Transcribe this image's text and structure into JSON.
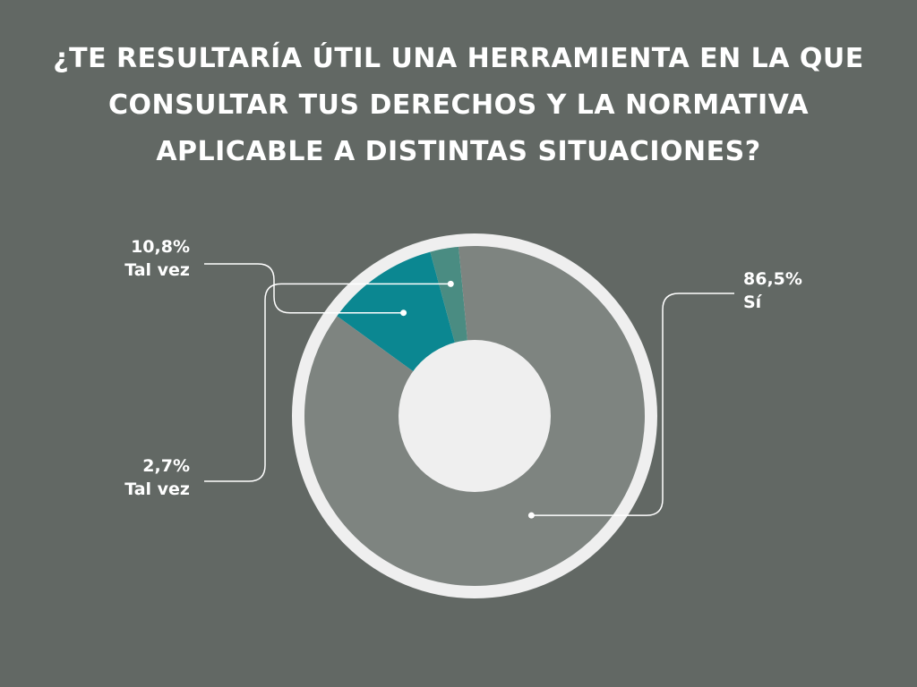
{
  "chart_data": {
    "type": "pie",
    "title_lines": [
      "¿TE RESULTARÍA ÚTIL UNA HERRAMIENTA EN LA QUE",
      "CONSULTAR TUS DERECHOS Y LA NORMATIVA",
      "APLICABLE A DISTINTAS SITUACIONES?"
    ],
    "donut": true,
    "start_angle_deg": -144,
    "slices": [
      {
        "label": "Tal vez",
        "value": 10.8,
        "value_label": "10,8%",
        "color": "#0b8791"
      },
      {
        "label": "Tal vez",
        "value": 2.7,
        "value_label": "2,7%",
        "color": "#4a8c82"
      },
      {
        "label": "Sí",
        "value": 86.5,
        "value_label": "86,5%",
        "color": "#7e8480"
      }
    ],
    "colors": {
      "background": "#626864",
      "ring": "#efefef",
      "hole": "#efefef",
      "title": "#ffffff"
    },
    "legend": "callout-labels"
  }
}
